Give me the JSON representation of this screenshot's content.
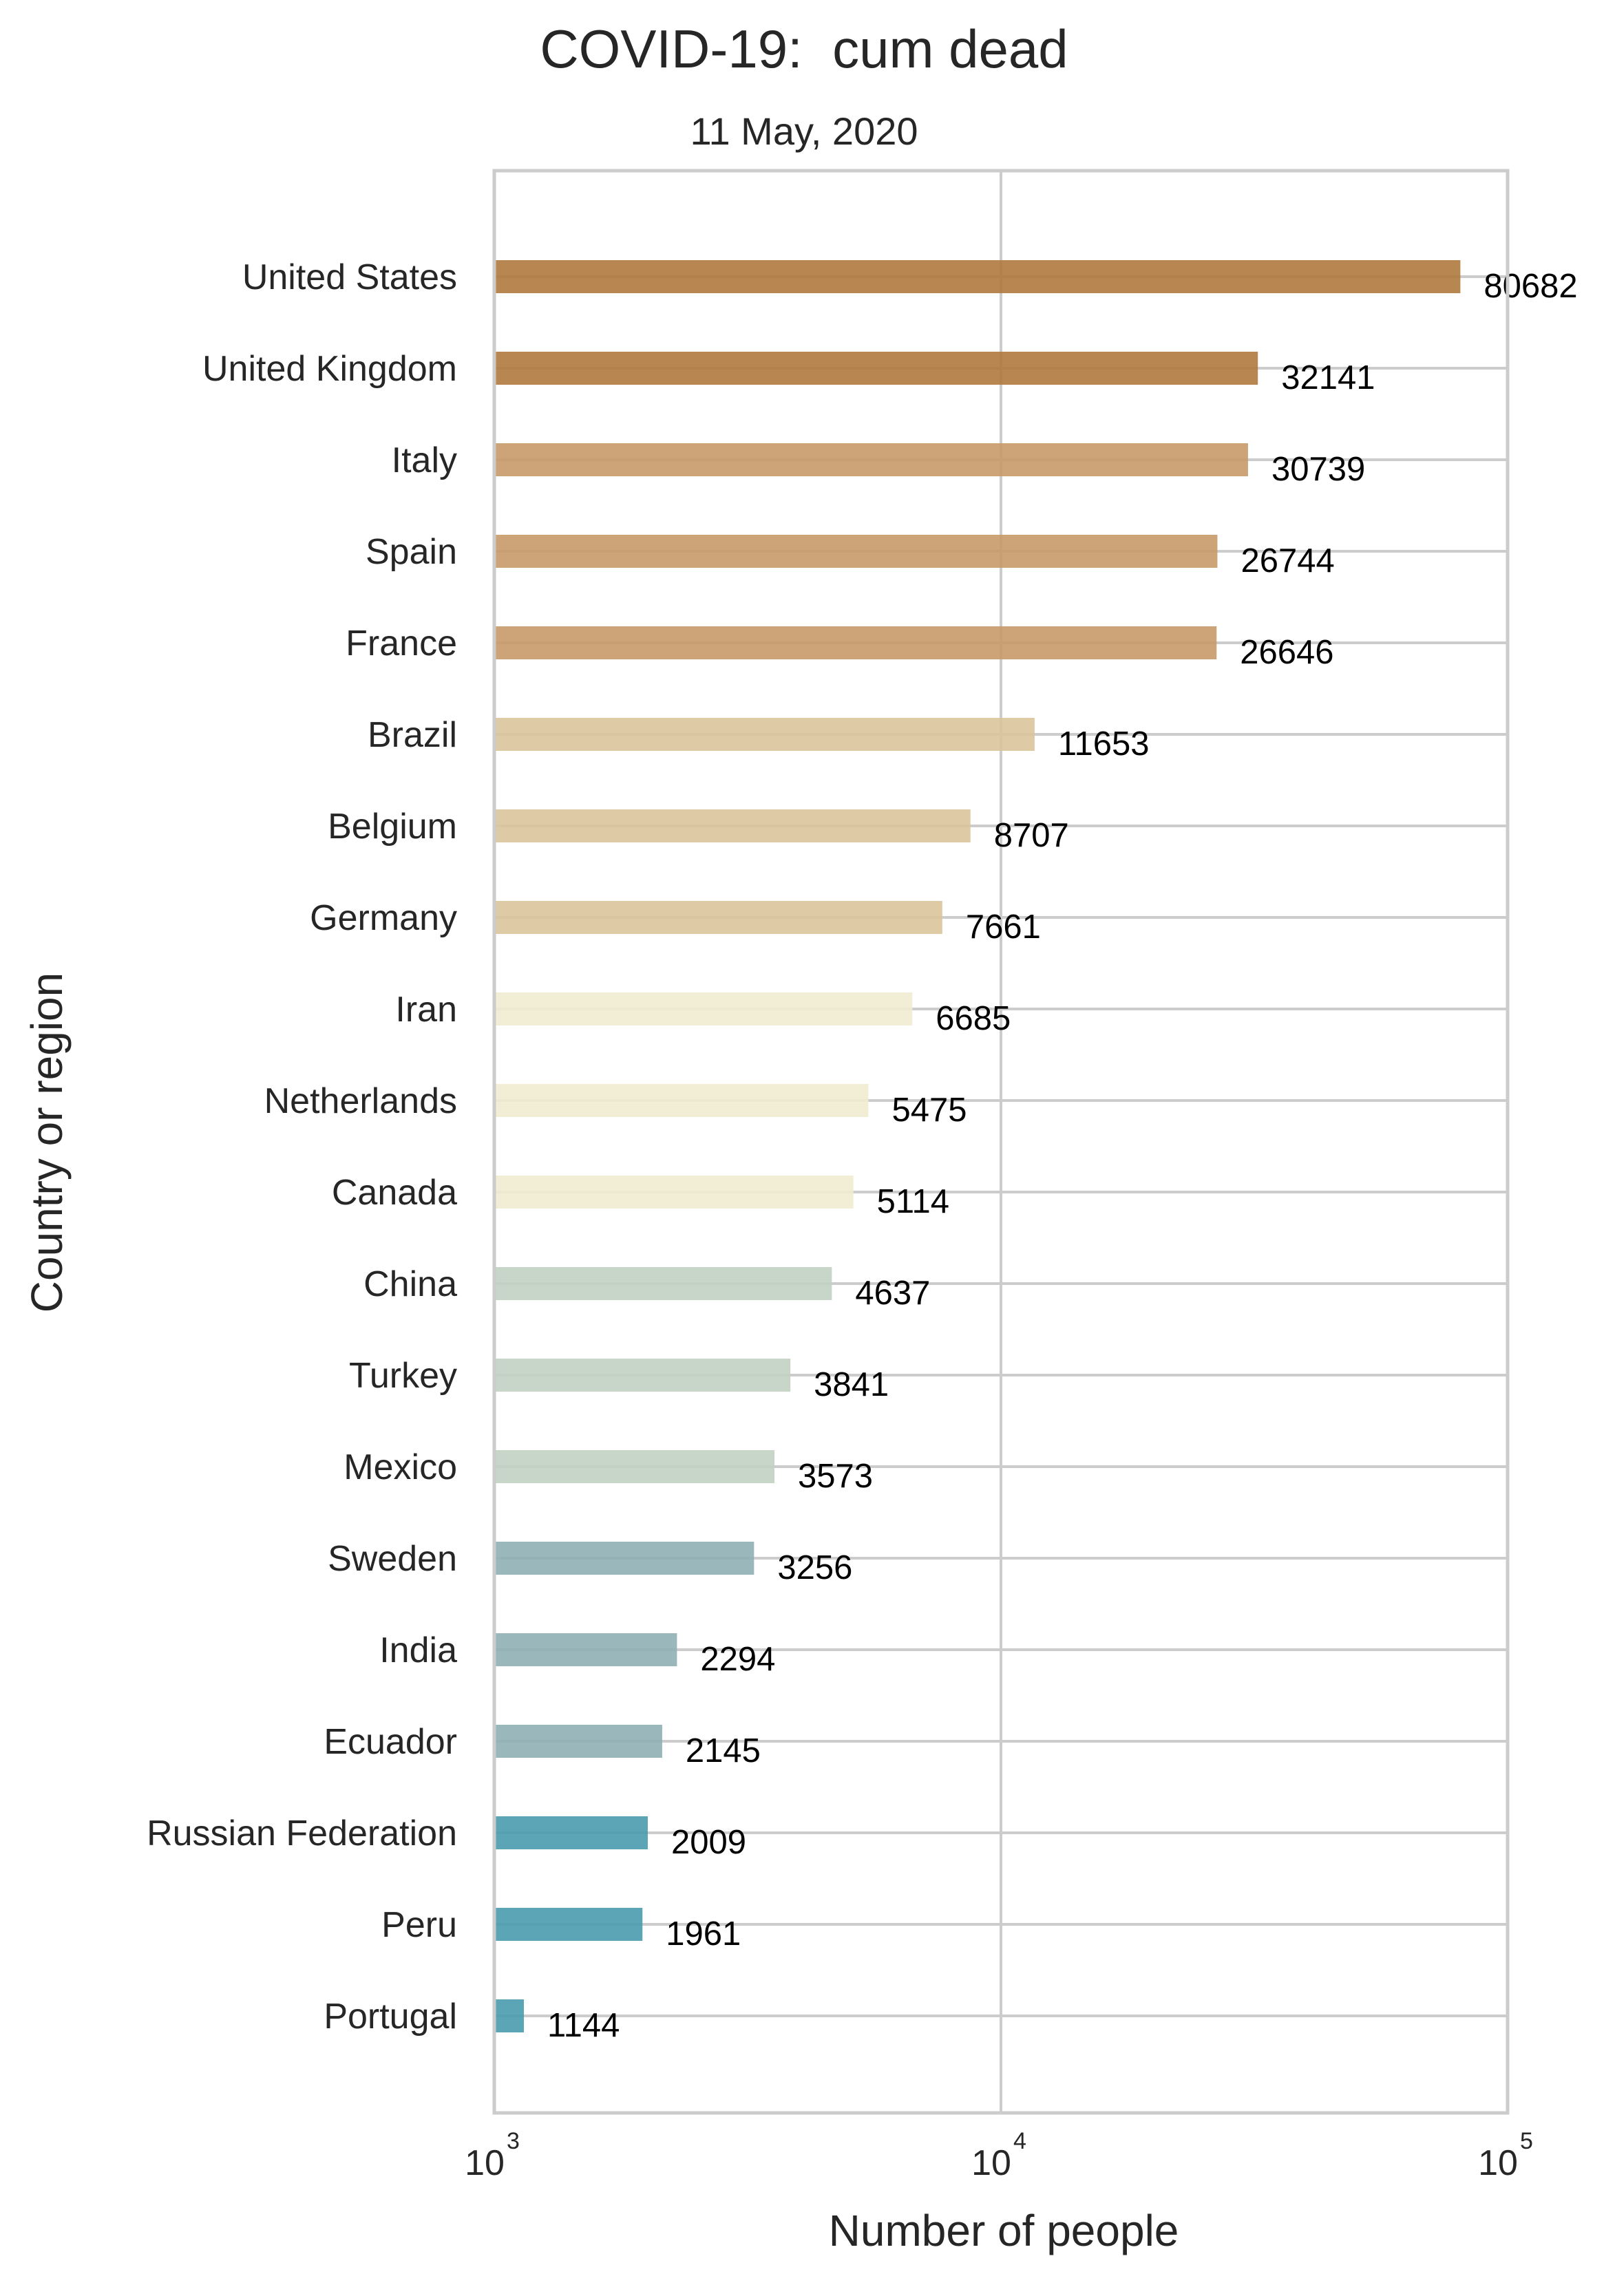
{
  "chart_data": {
    "type": "bar",
    "orientation": "horizontal",
    "title": "COVID-19:  cum dead",
    "subtitle": "11 May, 2020",
    "xlabel": "Number of people",
    "ylabel": "Country or region",
    "xscale": "log",
    "xlim": [
      1000,
      100000
    ],
    "xticks": [
      {
        "base": "10",
        "exp": "3",
        "value": 1000
      },
      {
        "base": "10",
        "exp": "4",
        "value": 10000
      },
      {
        "base": "10",
        "exp": "5",
        "value": 100000
      }
    ],
    "grid": true,
    "bars": [
      {
        "category": "United States",
        "value": 80682,
        "label": "80682",
        "color": "#b07a3e"
      },
      {
        "category": "United Kingdom",
        "value": 32141,
        "label": "32141",
        "color": "#b07a3e"
      },
      {
        "category": "Italy",
        "value": 30739,
        "label": "30739",
        "color": "#c79a68"
      },
      {
        "category": "Spain",
        "value": 26744,
        "label": "26744",
        "color": "#c79a68"
      },
      {
        "category": "France",
        "value": 26646,
        "label": "26646",
        "color": "#c79a68"
      },
      {
        "category": "Brazil",
        "value": 11653,
        "label": "11653",
        "color": "#dcc49c"
      },
      {
        "category": "Belgium",
        "value": 8707,
        "label": "8707",
        "color": "#dcc49c"
      },
      {
        "category": "Germany",
        "value": 7661,
        "label": "7661",
        "color": "#dcc49c"
      },
      {
        "category": "Iran",
        "value": 6685,
        "label": "6685",
        "color": "#f1ecd0"
      },
      {
        "category": "Netherlands",
        "value": 5475,
        "label": "5475",
        "color": "#f1ecd0"
      },
      {
        "category": "Canada",
        "value": 5114,
        "label": "5114",
        "color": "#f1ecd0"
      },
      {
        "category": "China",
        "value": 4637,
        "label": "4637",
        "color": "#c2d2c4"
      },
      {
        "category": "Turkey",
        "value": 3841,
        "label": "3841",
        "color": "#c2d2c4"
      },
      {
        "category": "Mexico",
        "value": 3573,
        "label": "3573",
        "color": "#c2d2c4"
      },
      {
        "category": "Sweden",
        "value": 3256,
        "label": "3256",
        "color": "#8fb0b4"
      },
      {
        "category": "India",
        "value": 2294,
        "label": "2294",
        "color": "#8fb0b4"
      },
      {
        "category": "Ecuador",
        "value": 2145,
        "label": "2145",
        "color": "#8fb0b4"
      },
      {
        "category": "Russian Federation",
        "value": 2009,
        "label": "2009",
        "color": "#4a9baf"
      },
      {
        "category": "Peru",
        "value": 1961,
        "label": "1961",
        "color": "#4a9baf"
      },
      {
        "category": "Portugal",
        "value": 1144,
        "label": "1144",
        "color": "#4a9baf"
      }
    ]
  }
}
